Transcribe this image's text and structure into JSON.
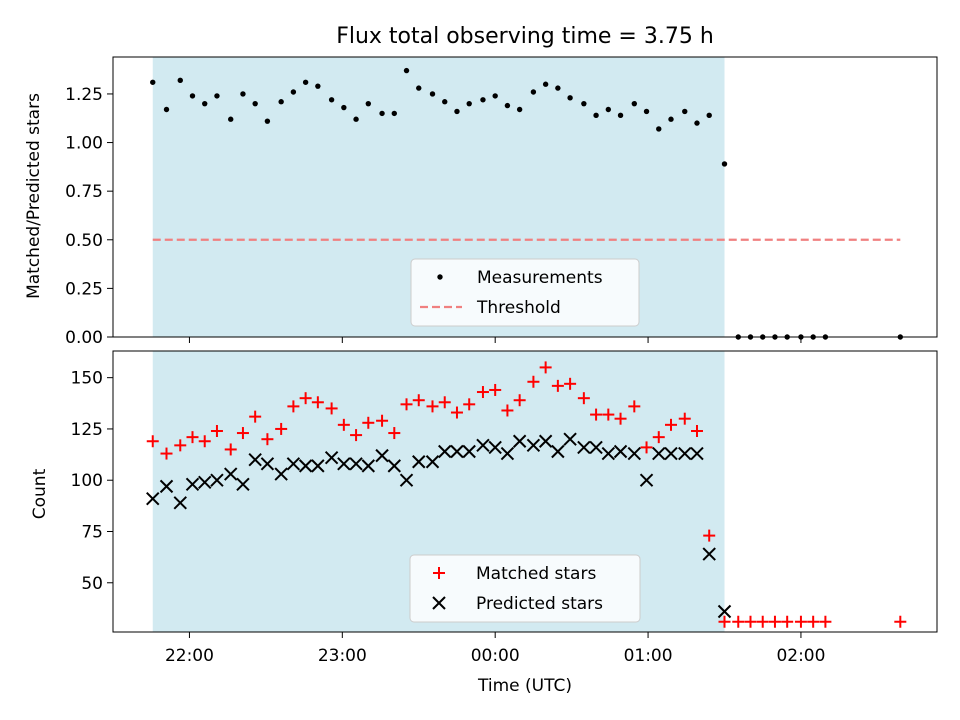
{
  "chart_data": [
    {
      "type": "scatter",
      "title": "Flux total observing time = 3.75 h",
      "xlabel": "",
      "ylabel": "Matched/Predicted stars",
      "ylim": [
        0,
        1.44
      ],
      "yticks": [
        "0.00",
        "0.25",
        "0.50",
        "0.75",
        "1.00",
        "1.25"
      ],
      "grid": false,
      "legend_position": "bottom-center",
      "shaded_region": {
        "x_start": 21.76,
        "x_end": 25.5,
        "color": "#add8e6"
      },
      "threshold": {
        "name": "Threshold",
        "value": 0.5,
        "x_start": 21.76,
        "x_end": 26.65,
        "color": "#f08080"
      },
      "series": [
        {
          "name": "Measurements",
          "marker": "dot",
          "color": "#000000",
          "x": [
            21.76,
            21.85,
            21.94,
            22.02,
            22.1,
            22.18,
            22.27,
            22.35,
            22.43,
            22.51,
            22.6,
            22.68,
            22.76,
            22.84,
            22.93,
            23.01,
            23.09,
            23.17,
            23.26,
            23.34,
            23.42,
            23.5,
            23.59,
            23.67,
            23.75,
            23.83,
            23.92,
            24.0,
            24.08,
            24.16,
            24.25,
            24.33,
            24.41,
            24.49,
            24.58,
            24.66,
            24.74,
            24.82,
            24.91,
            24.99,
            25.07,
            25.15,
            25.24,
            25.32,
            25.4,
            25.5,
            25.59,
            25.67,
            25.75,
            25.83,
            25.91,
            26.0,
            26.08,
            26.16,
            26.65
          ],
          "y": [
            1.31,
            1.17,
            1.32,
            1.24,
            1.2,
            1.24,
            1.12,
            1.25,
            1.2,
            1.11,
            1.21,
            1.26,
            1.31,
            1.29,
            1.22,
            1.18,
            1.12,
            1.2,
            1.15,
            1.15,
            1.37,
            1.28,
            1.25,
            1.21,
            1.16,
            1.2,
            1.22,
            1.24,
            1.19,
            1.17,
            1.26,
            1.3,
            1.28,
            1.23,
            1.2,
            1.14,
            1.17,
            1.14,
            1.2,
            1.16,
            1.07,
            1.12,
            1.16,
            1.1,
            1.14,
            0.89,
            0,
            0,
            0,
            0,
            0,
            0,
            0,
            0,
            0
          ]
        }
      ]
    },
    {
      "type": "scatter",
      "title": "",
      "xlabel": "Time (UTC)",
      "ylabel": "Count",
      "ylim": [
        26,
        163
      ],
      "yticks": [
        "50",
        "75",
        "100",
        "125",
        "150"
      ],
      "xlim": [
        21.5,
        26.89
      ],
      "xticks": [
        {
          "value": 22,
          "label": "22:00"
        },
        {
          "value": 23,
          "label": "23:00"
        },
        {
          "value": 24,
          "label": "00:00"
        },
        {
          "value": 25,
          "label": "01:00"
        },
        {
          "value": 26,
          "label": "02:00"
        }
      ],
      "grid": false,
      "legend_position": "bottom-center",
      "shaded_region": {
        "x_start": 21.76,
        "x_end": 25.5,
        "color": "#add8e6"
      },
      "series": [
        {
          "name": "Matched stars",
          "marker": "plus",
          "color": "#ff0000",
          "x": [
            21.76,
            21.85,
            21.94,
            22.02,
            22.1,
            22.18,
            22.27,
            22.35,
            22.43,
            22.51,
            22.6,
            22.68,
            22.76,
            22.84,
            22.93,
            23.01,
            23.09,
            23.17,
            23.26,
            23.34,
            23.42,
            23.5,
            23.59,
            23.67,
            23.75,
            23.83,
            23.92,
            24.0,
            24.08,
            24.16,
            24.25,
            24.33,
            24.41,
            24.49,
            24.58,
            24.66,
            24.74,
            24.82,
            24.91,
            24.99,
            25.07,
            25.15,
            25.24,
            25.32,
            25.4,
            25.5,
            25.59,
            25.67,
            25.75,
            25.83,
            25.91,
            26.0,
            26.08,
            26.16,
            26.65
          ],
          "y": [
            119,
            113,
            117,
            121,
            119,
            124,
            115,
            123,
            131,
            120,
            125,
            136,
            140,
            138,
            135,
            127,
            122,
            128,
            129,
            123,
            137,
            139,
            136,
            138,
            133,
            137,
            143,
            144,
            134,
            139,
            148,
            155,
            146,
            147,
            140,
            132,
            132,
            130,
            136,
            116,
            121,
            127,
            130,
            124,
            73,
            31,
            31,
            31,
            31,
            31,
            31,
            31,
            31,
            31,
            31
          ]
        },
        {
          "name": "Predicted stars",
          "marker": "x",
          "color": "#000000",
          "x": [
            21.76,
            21.85,
            21.94,
            22.02,
            22.1,
            22.18,
            22.27,
            22.35,
            22.43,
            22.51,
            22.6,
            22.68,
            22.76,
            22.84,
            22.93,
            23.01,
            23.09,
            23.17,
            23.26,
            23.34,
            23.42,
            23.5,
            23.59,
            23.67,
            23.75,
            23.83,
            23.92,
            24.0,
            24.08,
            24.16,
            24.25,
            24.33,
            24.41,
            24.49,
            24.58,
            24.66,
            24.74,
            24.82,
            24.91,
            24.99,
            25.07,
            25.15,
            25.24,
            25.32,
            25.4,
            25.5
          ],
          "y": [
            91,
            97,
            89,
            98,
            99,
            100,
            103,
            98,
            110,
            108,
            103,
            108,
            107,
            107,
            111,
            108,
            108,
            107,
            112,
            107,
            100,
            109,
            109,
            114,
            114,
            114,
            117,
            116,
            113,
            119,
            117,
            119,
            114,
            120,
            116,
            116,
            113,
            114,
            113,
            100,
            113,
            113,
            113,
            113,
            64,
            36
          ]
        }
      ]
    }
  ]
}
